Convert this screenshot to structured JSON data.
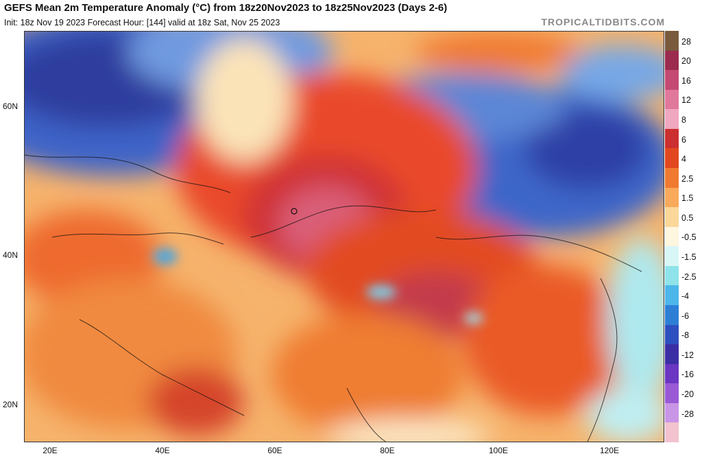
{
  "header": {
    "title": "GEFS Mean 2m Temperature Anomaly (°C) from 18z20Nov2023 to 18z25Nov2023 (Days 2-6)",
    "subtitle": "Init: 18z Nov 19 2023   Forecast Hour: [144]   valid at 18z Sat, Nov 25 2023",
    "brand": "TROPICALTIDBITS.COM"
  },
  "map": {
    "lat_labels": [
      "60N",
      "40N",
      "20N"
    ],
    "lon_labels": [
      "20E",
      "40E",
      "60E",
      "80E",
      "100E",
      "120E"
    ]
  },
  "colorbar": {
    "labels": [
      "28",
      "20",
      "16",
      "12",
      "8",
      "6",
      "4",
      "2.5",
      "1.5",
      "0.5",
      "-0.5",
      "-1.5",
      "-2.5",
      "-4",
      "-6",
      "-8",
      "-12",
      "-16",
      "-20",
      "-28"
    ],
    "colors": [
      "#7a5a3c",
      "#9b2b4f",
      "#c44a73",
      "#e0789c",
      "#f0a7c0",
      "#cc2f2f",
      "#e2481f",
      "#f07a30",
      "#f8a95a",
      "#fbd79a",
      "#fff6e0",
      "#d8f6f6",
      "#8fe3ea",
      "#4db6ea",
      "#2d7fd6",
      "#2e4fbf",
      "#3c2fa6",
      "#6a36c2",
      "#9a5ad6",
      "#c995e6",
      "#f2c3cf"
    ]
  }
}
